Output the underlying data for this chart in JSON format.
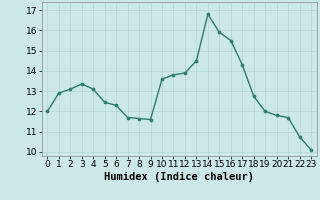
{
  "x": [
    0,
    1,
    2,
    3,
    4,
    5,
    6,
    7,
    8,
    9,
    10,
    11,
    12,
    13,
    14,
    15,
    16,
    17,
    18,
    19,
    20,
    21,
    22,
    23
  ],
  "y": [
    12.0,
    12.9,
    13.1,
    13.35,
    13.1,
    12.45,
    12.3,
    11.7,
    11.65,
    11.6,
    13.6,
    13.8,
    13.9,
    14.5,
    16.8,
    15.9,
    15.5,
    14.3,
    12.75,
    12.0,
    11.8,
    11.7,
    10.75,
    10.1
  ],
  "line_color": "#2d7d6e",
  "marker": "o",
  "markersize": 2.2,
  "linewidth": 1.0,
  "bg_color": "#cde8e8",
  "grid_color": "#b8d4d4",
  "xlabel": "Humidex (Indice chaleur)",
  "xlim": [
    -0.5,
    23.5
  ],
  "ylim": [
    9.8,
    17.4
  ],
  "yticks": [
    10,
    11,
    12,
    13,
    14,
    15,
    16,
    17
  ],
  "xticks": [
    0,
    1,
    2,
    3,
    4,
    5,
    6,
    7,
    8,
    9,
    10,
    11,
    12,
    13,
    14,
    15,
    16,
    17,
    18,
    19,
    20,
    21,
    22,
    23
  ],
  "xlabel_fontsize": 7.5,
  "tick_fontsize": 6.5
}
